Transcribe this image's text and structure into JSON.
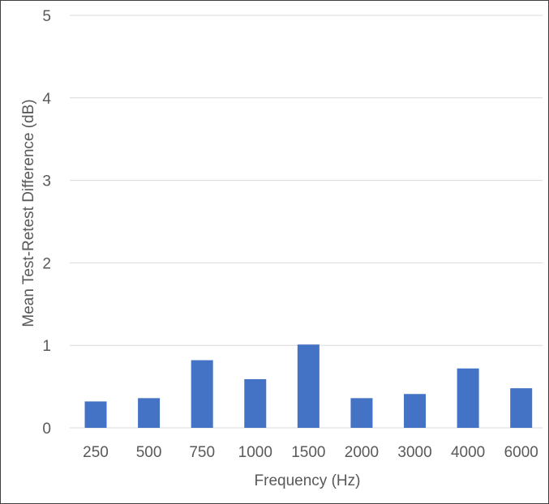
{
  "chart_data": {
    "type": "bar",
    "title": "",
    "xlabel": "Frequency (Hz)",
    "ylabel": "Mean Test-Retest Difference (dB)",
    "categories": [
      "250",
      "500",
      "750",
      "1000",
      "1500",
      "2000",
      "3000",
      "4000",
      "6000"
    ],
    "values": [
      0.32,
      0.36,
      0.82,
      0.59,
      1.01,
      0.36,
      0.41,
      0.72,
      0.48
    ],
    "ylim": [
      0,
      5
    ],
    "yticks": [
      "0",
      "1",
      "2",
      "3",
      "4",
      "5"
    ],
    "grid": true,
    "legend": "none",
    "bar_color": "#4472C4",
    "grid_color": "#D9D9D9"
  }
}
